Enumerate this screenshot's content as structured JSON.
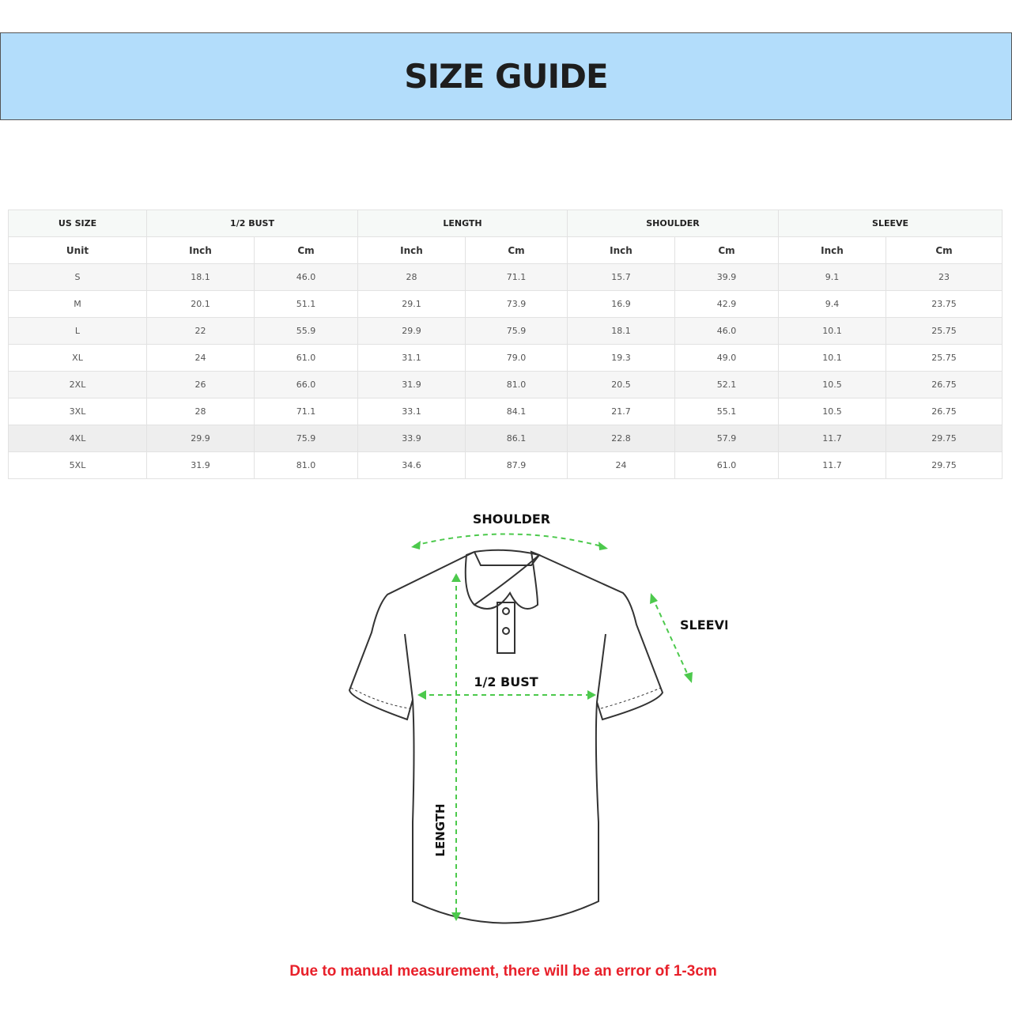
{
  "title": "SIZE GUIDE",
  "table": {
    "groups": [
      "US SIZE",
      "1/2 BUST",
      "LENGTH",
      "SHOULDER",
      "SLEEVE"
    ],
    "unit_row": [
      "Unit",
      "Inch",
      "Cm",
      "Inch",
      "Cm",
      "Inch",
      "Cm",
      "Inch",
      "Cm"
    ],
    "rows": [
      [
        "S",
        "18.1",
        "46.0",
        "28",
        "71.1",
        "15.7",
        "39.9",
        "9.1",
        "23"
      ],
      [
        "M",
        "20.1",
        "51.1",
        "29.1",
        "73.9",
        "16.9",
        "42.9",
        "9.4",
        "23.75"
      ],
      [
        "L",
        "22",
        "55.9",
        "29.9",
        "75.9",
        "18.1",
        "46.0",
        "10.1",
        "25.75"
      ],
      [
        "XL",
        "24",
        "61.0",
        "31.1",
        "79.0",
        "19.3",
        "49.0",
        "10.1",
        "25.75"
      ],
      [
        "2XL",
        "26",
        "66.0",
        "31.9",
        "81.0",
        "20.5",
        "52.1",
        "10.5",
        "26.75"
      ],
      [
        "3XL",
        "28",
        "71.1",
        "33.1",
        "84.1",
        "21.7",
        "55.1",
        "10.5",
        "26.75"
      ],
      [
        "4XL",
        "29.9",
        "75.9",
        "33.9",
        "86.1",
        "22.8",
        "57.9",
        "11.7",
        "29.75"
      ],
      [
        "5XL",
        "31.9",
        "81.0",
        "34.6",
        "87.9",
        "24",
        "61.0",
        "11.7",
        "29.75"
      ]
    ]
  },
  "diagram": {
    "shoulder": "SHOULDER",
    "sleeve": "SLEEVE",
    "bust": "1/2 BUST",
    "length": "LENGTH",
    "arrow_color": "#4cc94c"
  },
  "note": "Due to manual measurement, there will be an error of 1-3cm"
}
